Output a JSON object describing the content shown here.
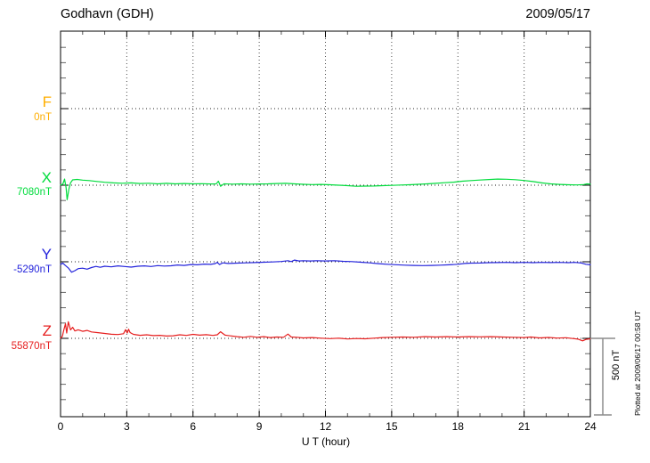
{
  "chart_data": {
    "type": "line",
    "title": "Godhavn (GDH)",
    "date_shown": "2009/05/17",
    "xlabel": "U T (hour)",
    "units": "nT",
    "x_range": [
      0,
      24
    ],
    "x_ticks": [
      0,
      3,
      6,
      9,
      12,
      15,
      18,
      21,
      24
    ],
    "x_minor_tick_step_hours": 1,
    "y_minor_tick_step_nT": 100,
    "grid": {
      "vertical_dotted_every_hours": 3,
      "horizontal_dotted_at": "each component baseline"
    },
    "scale_bar": {
      "nT": 500,
      "label": "500 nT"
    },
    "annotations": {
      "plotted_note": "Plotted at 2009/06/17 00:58 UT"
    },
    "series": [
      {
        "name": "F",
        "baseline_value_label": "0nT",
        "color": "#FFAE00",
        "points": []
      },
      {
        "name": "X",
        "baseline_value_label": "7080nT",
        "color": "#00DC3C",
        "points": [
          [
            0,
            2
          ],
          [
            0.1,
            6
          ],
          [
            0.18,
            40
          ],
          [
            0.25,
            -15
          ],
          [
            0.3,
            -95
          ],
          [
            0.38,
            -25
          ],
          [
            0.45,
            15
          ],
          [
            0.55,
            35
          ],
          [
            0.75,
            38
          ],
          [
            1,
            33
          ],
          [
            1.3,
            30
          ],
          [
            1.6,
            25
          ],
          [
            2,
            19
          ],
          [
            2.4,
            15
          ],
          [
            2.8,
            13
          ],
          [
            3.2,
            15
          ],
          [
            3.6,
            11
          ],
          [
            4,
            13
          ],
          [
            4.4,
            9
          ],
          [
            4.8,
            12
          ],
          [
            5.2,
            9
          ],
          [
            5.6,
            11
          ],
          [
            6,
            9
          ],
          [
            6.4,
            10
          ],
          [
            6.8,
            8
          ],
          [
            7.05,
            9
          ],
          [
            7.15,
            26
          ],
          [
            7.25,
            -7
          ],
          [
            7.4,
            9
          ],
          [
            7.8,
            7
          ],
          [
            8.2,
            9
          ],
          [
            8.6,
            7
          ],
          [
            9,
            8
          ],
          [
            9.4,
            9
          ],
          [
            9.8,
            11
          ],
          [
            10.2,
            12
          ],
          [
            10.6,
            9
          ],
          [
            11,
            6
          ],
          [
            11.4,
            4
          ],
          [
            11.8,
            5
          ],
          [
            12.2,
            3
          ],
          [
            12.6,
            0
          ],
          [
            13,
            -3
          ],
          [
            13.4,
            -7
          ],
          [
            13.8,
            -6
          ],
          [
            14.2,
            -5
          ],
          [
            14.6,
            -3
          ],
          [
            15,
            -1
          ],
          [
            15.4,
            1
          ],
          [
            15.8,
            3
          ],
          [
            16.2,
            6
          ],
          [
            16.6,
            9
          ],
          [
            17,
            12
          ],
          [
            17.4,
            16
          ],
          [
            17.8,
            20
          ],
          [
            18.2,
            26
          ],
          [
            18.6,
            30
          ],
          [
            19,
            34
          ],
          [
            19.4,
            37
          ],
          [
            19.8,
            40
          ],
          [
            20.2,
            39
          ],
          [
            20.6,
            36
          ],
          [
            21,
            31
          ],
          [
            21.4,
            24
          ],
          [
            21.8,
            15
          ],
          [
            22.2,
            9
          ],
          [
            22.6,
            5
          ],
          [
            23,
            3
          ],
          [
            23.4,
            2
          ],
          [
            23.7,
            4
          ],
          [
            23.85,
            9
          ],
          [
            24,
            7
          ]
        ]
      },
      {
        "name": "Y",
        "baseline_value_label": "-5290nT",
        "color": "#2424DC",
        "points": [
          [
            0,
            -18
          ],
          [
            0.1,
            -8
          ],
          [
            0.2,
            -22
          ],
          [
            0.35,
            -40
          ],
          [
            0.5,
            -68
          ],
          [
            0.65,
            -58
          ],
          [
            0.8,
            -45
          ],
          [
            1,
            -42
          ],
          [
            1.2,
            -48
          ],
          [
            1.4,
            -38
          ],
          [
            1.6,
            -30
          ],
          [
            1.8,
            -36
          ],
          [
            2,
            -29
          ],
          [
            2.3,
            -33
          ],
          [
            2.6,
            -27
          ],
          [
            2.9,
            -31
          ],
          [
            3.2,
            -35
          ],
          [
            3.5,
            -29
          ],
          [
            3.8,
            -27
          ],
          [
            4.1,
            -31
          ],
          [
            4.4,
            -25
          ],
          [
            4.7,
            -28
          ],
          [
            5,
            -26
          ],
          [
            5.3,
            -21
          ],
          [
            5.6,
            -24
          ],
          [
            5.9,
            -18
          ],
          [
            6.2,
            -20
          ],
          [
            6.5,
            -15
          ],
          [
            6.8,
            -17
          ],
          [
            7,
            -12
          ],
          [
            7.1,
            -4
          ],
          [
            7.2,
            -18
          ],
          [
            7.35,
            -7
          ],
          [
            7.6,
            -11
          ],
          [
            8,
            -9
          ],
          [
            8.4,
            -7
          ],
          [
            8.8,
            -5
          ],
          [
            9.2,
            -3
          ],
          [
            9.6,
            -1
          ],
          [
            10,
            2
          ],
          [
            10.3,
            7
          ],
          [
            10.45,
            1
          ],
          [
            10.6,
            11
          ],
          [
            10.8,
            5
          ],
          [
            11,
            7
          ],
          [
            11.3,
            5
          ],
          [
            11.6,
            7
          ],
          [
            12,
            5
          ],
          [
            12.4,
            7
          ],
          [
            12.8,
            3
          ],
          [
            13.2,
            1
          ],
          [
            13.6,
            -3
          ],
          [
            14,
            -7
          ],
          [
            14.4,
            -12
          ],
          [
            14.8,
            -16
          ],
          [
            15.2,
            -19
          ],
          [
            15.6,
            -22
          ],
          [
            16,
            -24
          ],
          [
            16.4,
            -25
          ],
          [
            16.8,
            -24
          ],
          [
            17.2,
            -22
          ],
          [
            17.6,
            -20
          ],
          [
            18,
            -16
          ],
          [
            18.3,
            -11
          ],
          [
            18.6,
            -9
          ],
          [
            19,
            -8
          ],
          [
            19.4,
            -6
          ],
          [
            19.8,
            -5
          ],
          [
            20.2,
            -4
          ],
          [
            20.6,
            -6
          ],
          [
            21,
            -4
          ],
          [
            21.4,
            -6
          ],
          [
            21.8,
            -4
          ],
          [
            22.2,
            -5
          ],
          [
            22.6,
            -4
          ],
          [
            23,
            -6
          ],
          [
            23.3,
            -4
          ],
          [
            23.6,
            -8
          ],
          [
            23.8,
            -16
          ],
          [
            24,
            -20
          ]
        ]
      },
      {
        "name": "Z",
        "baseline_value_label": "55870nT",
        "color": "#E61E1E",
        "points": [
          [
            0,
            2
          ],
          [
            0.08,
            12
          ],
          [
            0.15,
            55
          ],
          [
            0.22,
            95
          ],
          [
            0.28,
            35
          ],
          [
            0.35,
            108
          ],
          [
            0.45,
            55
          ],
          [
            0.55,
            72
          ],
          [
            0.65,
            48
          ],
          [
            0.8,
            56
          ],
          [
            1,
            46
          ],
          [
            1.2,
            52
          ],
          [
            1.4,
            42
          ],
          [
            1.7,
            37
          ],
          [
            2,
            32
          ],
          [
            2.3,
            27
          ],
          [
            2.6,
            25
          ],
          [
            2.85,
            30
          ],
          [
            2.95,
            57
          ],
          [
            3.02,
            35
          ],
          [
            3.08,
            60
          ],
          [
            3.15,
            38
          ],
          [
            3.3,
            26
          ],
          [
            3.6,
            20
          ],
          [
            3.9,
            23
          ],
          [
            4.2,
            18
          ],
          [
            4.5,
            20
          ],
          [
            4.8,
            15
          ],
          [
            5.1,
            17
          ],
          [
            5.4,
            23
          ],
          [
            5.7,
            19
          ],
          [
            6,
            26
          ],
          [
            6.3,
            21
          ],
          [
            6.6,
            24
          ],
          [
            6.9,
            19
          ],
          [
            7.1,
            23
          ],
          [
            7.25,
            43
          ],
          [
            7.45,
            21
          ],
          [
            7.7,
            16
          ],
          [
            8,
            11
          ],
          [
            8.3,
            7
          ],
          [
            8.6,
            13
          ],
          [
            8.9,
            7
          ],
          [
            9.2,
            11
          ],
          [
            9.5,
            5
          ],
          [
            9.8,
            9
          ],
          [
            10.1,
            7
          ],
          [
            10.3,
            28
          ],
          [
            10.45,
            9
          ],
          [
            10.7,
            7
          ],
          [
            11,
            3
          ],
          [
            11.4,
            5
          ],
          [
            11.8,
            1
          ],
          [
            12.2,
            -2
          ],
          [
            12.6,
            1
          ],
          [
            13,
            -4
          ],
          [
            13.4,
            -1
          ],
          [
            13.8,
            -3
          ],
          [
            14.2,
            1
          ],
          [
            14.6,
            5
          ],
          [
            15,
            7
          ],
          [
            15.5,
            9
          ],
          [
            16,
            7
          ],
          [
            16.5,
            11
          ],
          [
            17,
            9
          ],
          [
            17.5,
            11
          ],
          [
            18,
            9
          ],
          [
            18.5,
            11
          ],
          [
            19,
            10
          ],
          [
            19.5,
            11
          ],
          [
            20,
            9
          ],
          [
            20.5,
            7
          ],
          [
            21,
            5
          ],
          [
            21.3,
            9
          ],
          [
            21.7,
            3
          ],
          [
            22.1,
            6
          ],
          [
            22.5,
            2
          ],
          [
            22.9,
            4
          ],
          [
            23.2,
            -1
          ],
          [
            23.45,
            -5
          ],
          [
            23.65,
            -16
          ],
          [
            23.8,
            -7
          ],
          [
            24,
            -3
          ]
        ]
      }
    ]
  }
}
